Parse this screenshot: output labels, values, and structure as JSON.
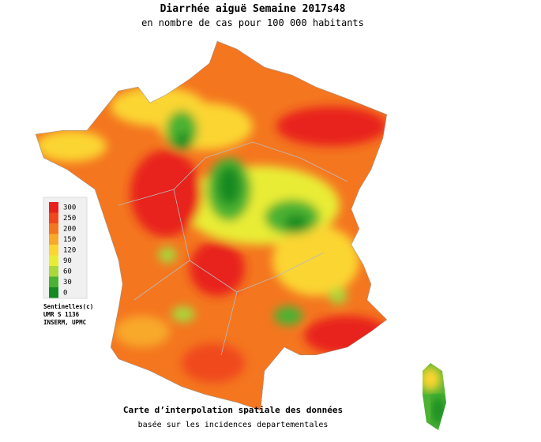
{
  "header": {
    "title": "Diarrhée aiguë Semaine 2017s48",
    "subtitle": "en nombre de cas pour 100 000 habitants"
  },
  "legend": {
    "items": [
      {
        "value": 300,
        "color": "#e8221a"
      },
      {
        "value": 250,
        "color": "#f0481c"
      },
      {
        "value": 200,
        "color": "#f4761f"
      },
      {
        "value": 150,
        "color": "#f8a92a"
      },
      {
        "value": 120,
        "color": "#fbd531"
      },
      {
        "value": 90,
        "color": "#e9ec35"
      },
      {
        "value": 60,
        "color": "#a8d83a"
      },
      {
        "value": 30,
        "color": "#4bb232"
      },
      {
        "value": 0,
        "color": "#138a22"
      }
    ]
  },
  "credits": [
    "Sentinelles(c)",
    "UMR S 1136",
    "INSERM, UPMC"
  ],
  "footer": {
    "title": "Carte d’interpolation spatiale des données",
    "subtitle": "basée sur les incidences departementales"
  }
}
